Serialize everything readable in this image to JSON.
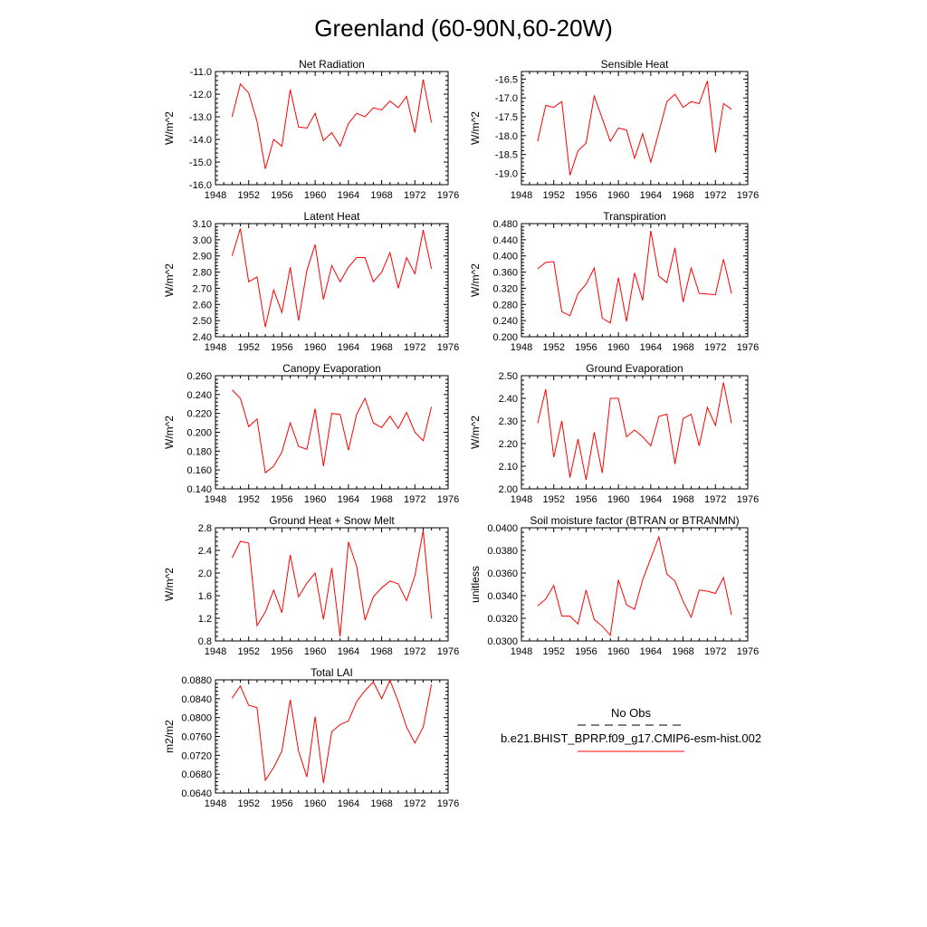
{
  "title": "Greenland (60-90N,60-20W)",
  "legend": {
    "entries": [
      {
        "label": "No Obs",
        "color": "#000000",
        "dash": true
      },
      {
        "label": "b.e21.BHIST_BPRP.f09_g17.CMIP6-esm-hist.002",
        "color": "#ff0000",
        "dash": false
      }
    ]
  },
  "chart_data": [
    {
      "type": "line",
      "title": "Net Radiation",
      "ylabel": "W/m^2",
      "xlim": [
        1948,
        1976
      ],
      "ylim": [
        -16.0,
        -11.0
      ],
      "xticks": [
        1948,
        1952,
        1956,
        1960,
        1964,
        1968,
        1972,
        1976
      ],
      "yticks": [
        -16.0,
        -15.0,
        -14.0,
        -13.0,
        -12.0,
        -11.0
      ],
      "ytick_labels": [
        "-16.0",
        "-15.0",
        "-14.0",
        "-13.0",
        "-12.0",
        "-11.0"
      ],
      "series": [
        {
          "color": "#ff0000",
          "x": [
            1950,
            1951,
            1952,
            1953,
            1954,
            1955,
            1956,
            1957,
            1958,
            1959,
            1960,
            1961,
            1962,
            1963,
            1964,
            1965,
            1966,
            1967,
            1968,
            1969,
            1970,
            1971,
            1972,
            1973,
            1974
          ],
          "y": [
            -13.0,
            -11.55,
            -11.95,
            -13.2,
            -15.3,
            -14.0,
            -14.3,
            -11.8,
            -13.45,
            -13.5,
            -12.85,
            -14.05,
            -13.7,
            -14.3,
            -13.3,
            -12.85,
            -13.0,
            -12.6,
            -12.7,
            -12.3,
            -12.6,
            -12.1,
            -13.7,
            -11.35,
            -13.25
          ]
        }
      ]
    },
    {
      "type": "line",
      "title": "Sensible Heat",
      "ylabel": "W/m^2",
      "xlim": [
        1948,
        1976
      ],
      "ylim": [
        -19.3,
        -16.3
      ],
      "xticks": [
        1948,
        1952,
        1956,
        1960,
        1964,
        1968,
        1972,
        1976
      ],
      "yticks": [
        -19.0,
        -18.5,
        -18.0,
        -17.5,
        -17.0,
        -16.5
      ],
      "ytick_labels": [
        "-19.0",
        "-18.5",
        "-18.0",
        "-17.5",
        "-17.0",
        "-16.5"
      ],
      "series": [
        {
          "color": "#ff0000",
          "x": [
            1950,
            1951,
            1952,
            1953,
            1954,
            1955,
            1956,
            1957,
            1958,
            1959,
            1960,
            1961,
            1962,
            1963,
            1964,
            1965,
            1966,
            1967,
            1968,
            1969,
            1970,
            1971,
            1972,
            1973,
            1974
          ],
          "y": [
            -18.15,
            -17.2,
            -17.25,
            -17.1,
            -19.05,
            -18.4,
            -18.2,
            -16.95,
            -17.55,
            -18.15,
            -17.8,
            -17.85,
            -18.6,
            -17.95,
            -18.7,
            -17.9,
            -17.1,
            -16.9,
            -17.25,
            -17.1,
            -17.15,
            -16.55,
            -18.45,
            -17.15,
            -17.3
          ]
        }
      ]
    },
    {
      "type": "line",
      "title": "Latent Heat",
      "ylabel": "W/m^2",
      "xlim": [
        1948,
        1976
      ],
      "ylim": [
        2.4,
        3.1
      ],
      "xticks": [
        1948,
        1952,
        1956,
        1960,
        1964,
        1968,
        1972,
        1976
      ],
      "yticks": [
        2.4,
        2.5,
        2.6,
        2.7,
        2.8,
        2.9,
        3.0,
        3.1
      ],
      "ytick_labels": [
        "2.40",
        "2.50",
        "2.60",
        "2.70",
        "2.80",
        "2.90",
        "3.00",
        "3.10"
      ],
      "series": [
        {
          "color": "#ff0000",
          "x": [
            1950,
            1951,
            1952,
            1953,
            1954,
            1955,
            1956,
            1957,
            1958,
            1959,
            1960,
            1961,
            1962,
            1963,
            1964,
            1965,
            1966,
            1967,
            1968,
            1969,
            1970,
            1971,
            1972,
            1973,
            1974
          ],
          "y": [
            2.9,
            3.07,
            2.74,
            2.77,
            2.46,
            2.69,
            2.55,
            2.83,
            2.5,
            2.81,
            2.97,
            2.63,
            2.84,
            2.74,
            2.83,
            2.89,
            2.89,
            2.74,
            2.8,
            2.92,
            2.7,
            2.89,
            2.79,
            3.06,
            2.82
          ]
        }
      ]
    },
    {
      "type": "line",
      "title": "Transpiration",
      "ylabel": "W/m^2",
      "xlim": [
        1948,
        1976
      ],
      "ylim": [
        0.2,
        0.48
      ],
      "xticks": [
        1948,
        1952,
        1956,
        1960,
        1964,
        1968,
        1972,
        1976
      ],
      "yticks": [
        0.2,
        0.24,
        0.28,
        0.32,
        0.36,
        0.4,
        0.44,
        0.48
      ],
      "ytick_labels": [
        "0.200",
        "0.240",
        "0.280",
        "0.320",
        "0.360",
        "0.400",
        "0.440",
        "0.480"
      ],
      "series": [
        {
          "color": "#ff0000",
          "x": [
            1950,
            1951,
            1952,
            1953,
            1954,
            1955,
            1956,
            1957,
            1958,
            1959,
            1960,
            1961,
            1962,
            1963,
            1964,
            1965,
            1966,
            1967,
            1968,
            1969,
            1970,
            1971,
            1972,
            1973,
            1974
          ],
          "y": [
            0.368,
            0.384,
            0.386,
            0.262,
            0.252,
            0.307,
            0.33,
            0.37,
            0.246,
            0.234,
            0.346,
            0.238,
            0.358,
            0.29,
            0.462,
            0.35,
            0.334,
            0.42,
            0.286,
            0.37,
            0.307,
            0.306,
            0.304,
            0.392,
            0.307
          ]
        }
      ]
    },
    {
      "type": "line",
      "title": "Canopy Evaporation",
      "ylabel": "W/m^2",
      "xlim": [
        1948,
        1976
      ],
      "ylim": [
        0.14,
        0.26
      ],
      "xticks": [
        1948,
        1952,
        1956,
        1960,
        1964,
        1968,
        1972,
        1976
      ],
      "yticks": [
        0.14,
        0.16,
        0.18,
        0.2,
        0.22,
        0.24,
        0.26
      ],
      "ytick_labels": [
        "0.140",
        "0.160",
        "0.180",
        "0.200",
        "0.220",
        "0.240",
        "0.260"
      ],
      "series": [
        {
          "color": "#ff0000",
          "x": [
            1950,
            1951,
            1952,
            1953,
            1954,
            1955,
            1956,
            1957,
            1958,
            1959,
            1960,
            1961,
            1962,
            1963,
            1964,
            1965,
            1966,
            1967,
            1968,
            1969,
            1970,
            1971,
            1972,
            1973,
            1974
          ],
          "y": [
            0.245,
            0.236,
            0.206,
            0.214,
            0.157,
            0.164,
            0.179,
            0.21,
            0.185,
            0.182,
            0.225,
            0.164,
            0.22,
            0.219,
            0.181,
            0.219,
            0.236,
            0.21,
            0.205,
            0.217,
            0.204,
            0.221,
            0.2,
            0.191,
            0.227
          ]
        }
      ]
    },
    {
      "type": "line",
      "title": "Ground Evaporation",
      "ylabel": "W/m^2",
      "xlim": [
        1948,
        1976
      ],
      "ylim": [
        2.0,
        2.5
      ],
      "xticks": [
        1948,
        1952,
        1956,
        1960,
        1964,
        1968,
        1972,
        1976
      ],
      "yticks": [
        2.0,
        2.1,
        2.2,
        2.3,
        2.4,
        2.5
      ],
      "ytick_labels": [
        "2.00",
        "2.10",
        "2.20",
        "2.30",
        "2.40",
        "2.50"
      ],
      "series": [
        {
          "color": "#ff0000",
          "x": [
            1950,
            1951,
            1952,
            1953,
            1954,
            1955,
            1956,
            1957,
            1958,
            1959,
            1960,
            1961,
            1962,
            1963,
            1964,
            1965,
            1966,
            1967,
            1968,
            1969,
            1970,
            1971,
            1972,
            1973,
            1974
          ],
          "y": [
            2.29,
            2.44,
            2.14,
            2.3,
            2.05,
            2.22,
            2.04,
            2.25,
            2.07,
            2.4,
            2.4,
            2.23,
            2.26,
            2.23,
            2.19,
            2.32,
            2.33,
            2.11,
            2.31,
            2.33,
            2.19,
            2.36,
            2.28,
            2.47,
            2.29
          ]
        }
      ]
    },
    {
      "type": "line",
      "title": "Ground Heat + Snow Melt",
      "ylabel": "W/m^2",
      "xlim": [
        1948,
        1976
      ],
      "ylim": [
        0.8,
        2.8
      ],
      "xticks": [
        1948,
        1952,
        1956,
        1960,
        1964,
        1968,
        1972,
        1976
      ],
      "yticks": [
        0.8,
        1.2,
        1.6,
        2.0,
        2.4,
        2.8
      ],
      "ytick_labels": [
        "0.8",
        "1.2",
        "1.6",
        "2.0",
        "2.4",
        "2.8"
      ],
      "series": [
        {
          "color": "#ff0000",
          "x": [
            1950,
            1951,
            1952,
            1953,
            1954,
            1955,
            1956,
            1957,
            1958,
            1959,
            1960,
            1961,
            1962,
            1963,
            1964,
            1965,
            1966,
            1967,
            1968,
            1969,
            1970,
            1971,
            1972,
            1973,
            1974
          ],
          "y": [
            2.27,
            2.56,
            2.53,
            1.07,
            1.31,
            1.7,
            1.3,
            2.32,
            1.58,
            1.82,
            2.0,
            1.18,
            2.09,
            0.88,
            2.55,
            2.12,
            1.17,
            1.58,
            1.74,
            1.86,
            1.81,
            1.51,
            1.95,
            2.75,
            1.2
          ]
        }
      ]
    },
    {
      "type": "line",
      "title": "Soil moisture factor (BTRAN or BTRANMN)",
      "ylabel": "unitless",
      "xlim": [
        1948,
        1976
      ],
      "ylim": [
        0.03,
        0.04
      ],
      "xticks": [
        1948,
        1952,
        1956,
        1960,
        1964,
        1968,
        1972,
        1976
      ],
      "yticks": [
        0.03,
        0.032,
        0.034,
        0.036,
        0.038,
        0.04
      ],
      "ytick_labels": [
        "0.0300",
        "0.0320",
        "0.0340",
        "0.0360",
        "0.0380",
        "0.0400"
      ],
      "series": [
        {
          "color": "#ff0000",
          "x": [
            1950,
            1951,
            1952,
            1953,
            1954,
            1955,
            1956,
            1957,
            1958,
            1959,
            1960,
            1961,
            1962,
            1963,
            1964,
            1965,
            1966,
            1967,
            1968,
            1969,
            1970,
            1971,
            1972,
            1973,
            1974
          ],
          "y": [
            0.0331,
            0.0337,
            0.0349,
            0.0322,
            0.0322,
            0.0315,
            0.0345,
            0.0319,
            0.0313,
            0.0305,
            0.0354,
            0.0332,
            0.0328,
            0.0354,
            0.0373,
            0.0392,
            0.0359,
            0.0353,
            0.0335,
            0.0321,
            0.0345,
            0.0344,
            0.0342,
            0.0356,
            0.0323
          ]
        }
      ]
    },
    {
      "type": "line",
      "title": "Total LAI",
      "ylabel": "m2/m2",
      "xlim": [
        1948,
        1976
      ],
      "ylim": [
        0.064,
        0.088
      ],
      "xticks": [
        1948,
        1952,
        1956,
        1960,
        1964,
        1968,
        1972,
        1976
      ],
      "yticks": [
        0.064,
        0.068,
        0.072,
        0.076,
        0.08,
        0.084,
        0.088
      ],
      "ytick_labels": [
        "0.0640",
        "0.0680",
        "0.0720",
        "0.0760",
        "0.0800",
        "0.0840",
        "0.0880"
      ],
      "series": [
        {
          "color": "#ff0000",
          "x": [
            1950,
            1951,
            1952,
            1953,
            1954,
            1955,
            1956,
            1957,
            1958,
            1959,
            1960,
            1961,
            1962,
            1963,
            1964,
            1965,
            1966,
            1967,
            1968,
            1969,
            1970,
            1971,
            1972,
            1973,
            1974
          ],
          "y": [
            0.0841,
            0.0867,
            0.0826,
            0.0821,
            0.0667,
            0.0694,
            0.0729,
            0.0838,
            0.0729,
            0.0674,
            0.0802,
            0.0661,
            0.077,
            0.0785,
            0.0793,
            0.0834,
            0.0857,
            0.0876,
            0.084,
            0.0879,
            0.0834,
            0.078,
            0.0746,
            0.078,
            0.087
          ]
        }
      ]
    }
  ]
}
